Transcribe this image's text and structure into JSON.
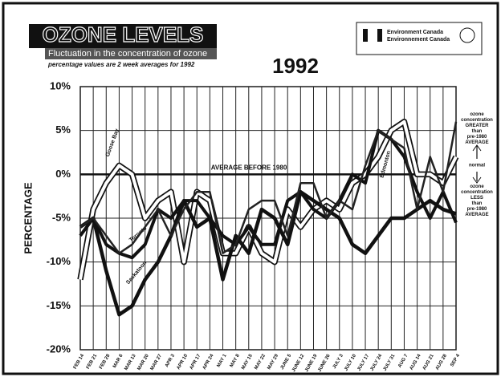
{
  "header": {
    "banner": "OZONE LEVELS",
    "subtitle": "Fluctuation in the concentration of ozone",
    "note": "percentage values are 2 week averages for 1992",
    "logo_lines": [
      "Environment Canada",
      "Environnement Canada"
    ]
  },
  "chart_data": {
    "type": "line",
    "title": "1992",
    "y_label": "PERCENTAGE",
    "categories": [
      "FEB 14",
      "FEB 21",
      "FEB 28",
      "MAR 6",
      "MAR 13",
      "MAR 20",
      "MAR 27",
      "APR 3",
      "APR 10",
      "APR 17",
      "APR 24",
      "MAY 1",
      "MAY 8",
      "MAY 15",
      "MAY 22",
      "MAY 29",
      "JUNE 5",
      "JUNE 12",
      "JUNE 19",
      "JUNE 26",
      "JULY 3",
      "JULY 10",
      "JULY 17",
      "JULY 24",
      "JULY 31",
      "AUG 7",
      "AUG 14",
      "AUG 21",
      "AUG 28",
      "SEP 4"
    ],
    "series": [
      {
        "name": "Goose Bay",
        "color": "#ffffff",
        "values": [
          -12,
          -4,
          -1,
          1,
          0,
          -5,
          -3,
          -2,
          -10,
          -2,
          -3,
          -9,
          -9,
          -6,
          -9,
          -10,
          -4,
          -6,
          -4,
          -3,
          -4,
          -1,
          0,
          2,
          5,
          6,
          0,
          0,
          -1,
          2
        ]
      },
      {
        "name": "Saskatoon",
        "color": "#111111",
        "values": [
          -6,
          -5,
          -11,
          -16,
          -15,
          -12,
          -10,
          -7,
          -3,
          -6,
          -5,
          -12,
          -7,
          -9,
          -4,
          -5,
          -8,
          -2,
          -3,
          -4,
          -5,
          -8,
          -9,
          -7,
          -5,
          -5,
          -4,
          -3,
          -4,
          -4.5
        ]
      },
      {
        "name": "Toronto",
        "color": "#111111",
        "values": [
          -7,
          -5,
          -8,
          -9,
          -9.5,
          -8,
          -4,
          -5,
          -3,
          -3,
          -5,
          -7,
          -8,
          -6,
          -8,
          -8,
          -3,
          -2,
          -4,
          -5,
          -3,
          0,
          -1,
          5,
          4,
          2,
          -2,
          -5,
          -2,
          -5.5
        ]
      },
      {
        "name": "Edmonton",
        "color": "#222222",
        "values": [
          -6,
          -5,
          -7,
          -9,
          -8,
          -6,
          -4,
          -7,
          -4,
          -2,
          -2,
          -9,
          -8,
          -4,
          -3,
          -3,
          -7,
          -1,
          -1,
          -5,
          -3,
          -4,
          1,
          5,
          4,
          3,
          -4,
          2,
          -2,
          6
        ]
      }
    ],
    "ylim": [
      -20,
      10
    ],
    "yticks": [
      {
        "value": -20,
        "label": "-20%"
      },
      {
        "value": -15,
        "label": "-15%"
      },
      {
        "value": -10,
        "label": "-10%"
      },
      {
        "value": -5,
        "label": "-5%"
      },
      {
        "value": 0,
        "label": "0%"
      },
      {
        "value": 5,
        "label": "5%"
      },
      {
        "value": 10,
        "label": "10%"
      }
    ],
    "reference_line": {
      "value": 0,
      "label": "AVERAGE BEFORE 1980"
    },
    "annotations": {
      "greater": "ozone concentration GREATER than pre-1980 AVERAGE",
      "normal": "normal",
      "less": "ozone concentration LESS than pre-1980 AVERAGE"
    },
    "grid": true
  }
}
